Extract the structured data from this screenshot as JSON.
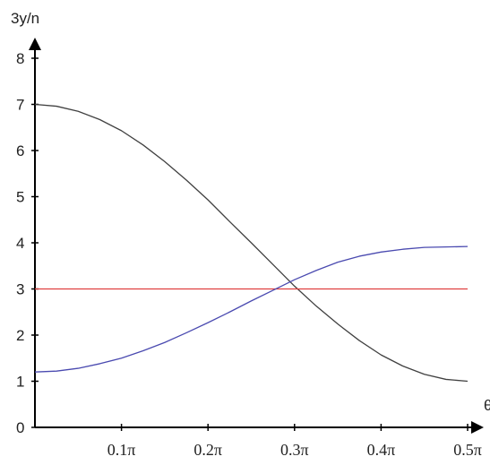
{
  "chart_data": {
    "type": "line",
    "title": "",
    "ylabel": "3y/n",
    "xlabel": "θ",
    "xlim": [
      0,
      0.5
    ],
    "ylim": [
      0,
      8
    ],
    "y_ticks": [
      "0",
      "1",
      "2",
      "3",
      "4",
      "5",
      "6",
      "7",
      "8"
    ],
    "x_ticks": [
      {
        "value": 0.1,
        "label": "0.1π"
      },
      {
        "value": 0.2,
        "label": "0.2π"
      },
      {
        "value": 0.3,
        "label": "0.3π"
      },
      {
        "value": 0.4,
        "label": "0.4π"
      },
      {
        "value": 0.5,
        "label": "0.5π"
      }
    ],
    "grid": false,
    "series": [
      {
        "color": "#404040",
        "x": [
          0,
          0.025,
          0.05,
          0.075,
          0.1,
          0.125,
          0.15,
          0.175,
          0.2,
          0.225,
          0.25,
          0.275,
          0.3,
          0.325,
          0.35,
          0.375,
          0.4,
          0.425,
          0.45,
          0.475,
          0.5
        ],
        "y": [
          7.0,
          6.96,
          6.85,
          6.67,
          6.43,
          6.12,
          5.76,
          5.36,
          4.93,
          4.46,
          4.0,
          3.53,
          3.06,
          2.63,
          2.24,
          1.88,
          1.57,
          1.33,
          1.15,
          1.04,
          1.0
        ]
      },
      {
        "color": "#e04040",
        "x": [
          0,
          0.5
        ],
        "y": [
          3.0,
          3.0
        ]
      },
      {
        "color": "#4a4ab0",
        "x": [
          0,
          0.025,
          0.05,
          0.075,
          0.1,
          0.125,
          0.15,
          0.175,
          0.2,
          0.225,
          0.25,
          0.275,
          0.3,
          0.325,
          0.35,
          0.375,
          0.4,
          0.425,
          0.45,
          0.475,
          0.5
        ],
        "y": [
          1.2,
          1.22,
          1.28,
          1.38,
          1.5,
          1.66,
          1.84,
          2.05,
          2.27,
          2.5,
          2.74,
          2.97,
          3.2,
          3.4,
          3.58,
          3.71,
          3.8,
          3.86,
          3.9,
          3.91,
          3.92
        ]
      }
    ]
  }
}
